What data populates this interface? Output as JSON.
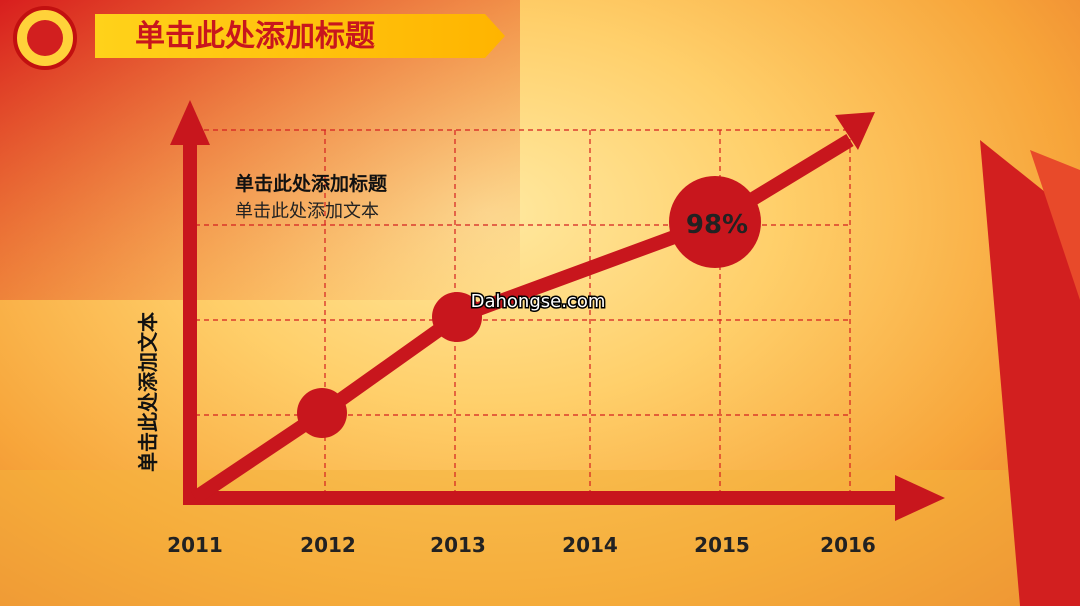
{
  "header": {
    "title": "单击此处添加标题"
  },
  "chart": {
    "title": "单击此处添加标题",
    "subtitle": "单击此处添加文本",
    "y_axis_label": "单击此处添加文本",
    "x_labels": [
      "2011",
      "2012",
      "2013",
      "2014",
      "2015",
      "2016"
    ],
    "highlight": "98%"
  },
  "watermark": "Dahongse.com"
}
